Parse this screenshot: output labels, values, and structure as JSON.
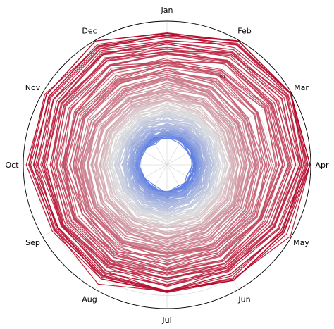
{
  "chart_data": {
    "type": "line",
    "projection": "polar",
    "title": "",
    "categories": [
      "Jan",
      "Feb",
      "Mar",
      "Apr",
      "May",
      "Jun",
      "Jul",
      "Aug",
      "Sep",
      "Oct",
      "Nov",
      "Dec"
    ],
    "radial_ticks": [
      "0.5",
      "1.0"
    ],
    "radial_tick_values": [
      0.5,
      1.0
    ],
    "r_range": [
      -1.5,
      1.25
    ],
    "grid": true,
    "legend": "none",
    "colormap": "coolwarm",
    "colors": {
      "low": "#4a6fe3",
      "mid": "#dddddd",
      "high": "#b40426"
    },
    "series_count": 174,
    "value_model": {
      "first_mean": -0.95,
      "last_mean": 1.05,
      "noise": 0.09,
      "late_spring_boost": [
        0,
        0.08,
        0.12,
        0.1,
        0.04,
        0,
        -0.02,
        0,
        0,
        0.04,
        0.05,
        0.06
      ]
    }
  }
}
